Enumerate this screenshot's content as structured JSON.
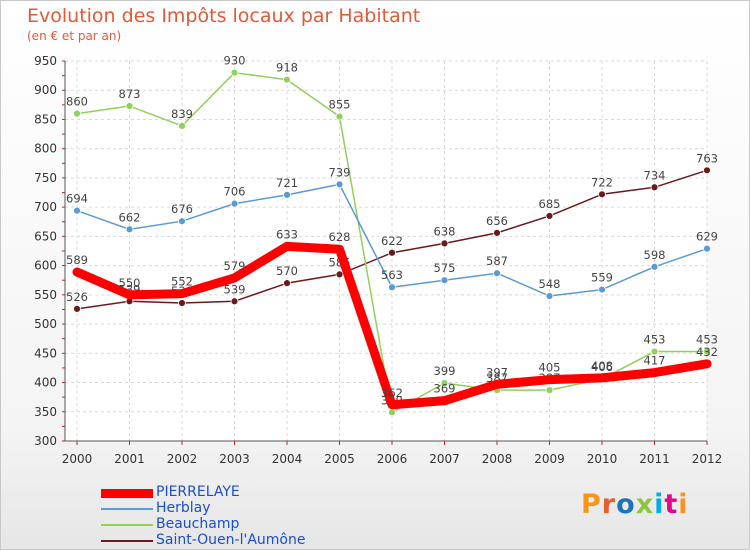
{
  "title": "Evolution des Impôts locaux par Habitant",
  "subtitle": "(en € et par an)",
  "logo": {
    "text": "Proxiti",
    "colors": [
      "#f7941d",
      "#f15a29",
      "#1c75bc",
      "#8dc63f",
      "#00aeef",
      "#ec008c",
      "#f7941d"
    ]
  },
  "chart_data": {
    "type": "line",
    "x": [
      "2000",
      "2001",
      "2002",
      "2003",
      "2004",
      "2005",
      "2006",
      "2007",
      "2008",
      "2009",
      "2010",
      "2011",
      "2012"
    ],
    "ylim": [
      300,
      950
    ],
    "yticks": [
      300,
      350,
      400,
      450,
      500,
      550,
      600,
      650,
      700,
      750,
      800,
      850,
      900,
      950
    ],
    "grid": true,
    "legend": "bottom-left",
    "series": [
      {
        "name": "Saint-Ouen-l'Aumône",
        "color": "#6b1a1a",
        "values": [
          526,
          539,
          536,
          539,
          570,
          585,
          622,
          638,
          656,
          685,
          722,
          734,
          763
        ]
      },
      {
        "name": "Beauchamp",
        "color": "#8fd15a",
        "values": [
          860,
          873,
          839,
          930,
          918,
          855,
          349,
          399,
          387,
          387,
          406,
          453,
          453
        ]
      },
      {
        "name": "Herblay",
        "color": "#5b9bd5",
        "values": [
          694,
          662,
          676,
          706,
          721,
          739,
          563,
          575,
          587,
          548,
          559,
          598,
          629
        ]
      },
      {
        "name": "PIERRELAYE",
        "color": "#ff0000",
        "values": [
          589,
          550,
          552,
          579,
          633,
          628,
          362,
          369,
          397,
          405,
          408,
          417,
          432
        ]
      }
    ],
    "legend_order": [
      "PIERRELAYE",
      "Herblay",
      "Beauchamp",
      "Saint-Ouen-l'Aumône"
    ]
  }
}
